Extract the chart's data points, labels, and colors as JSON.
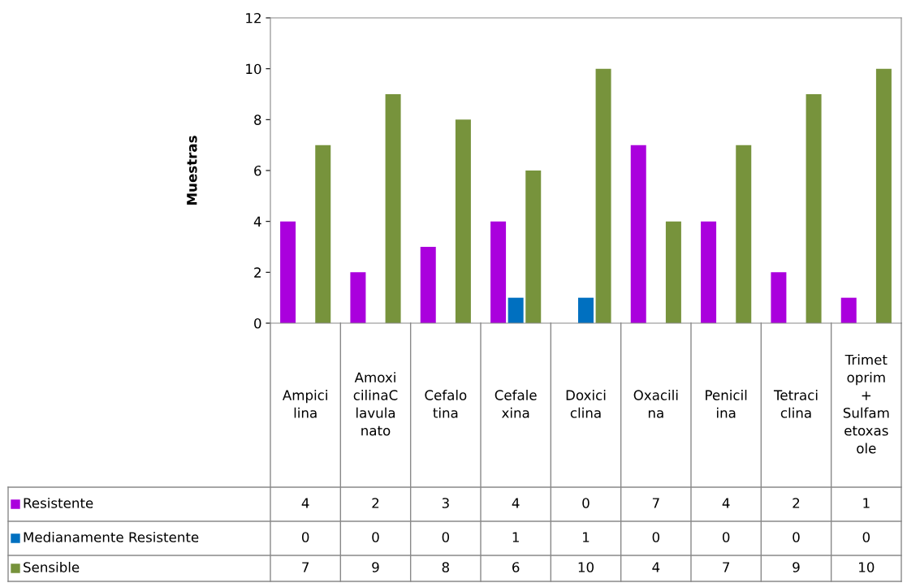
{
  "chart_data": {
    "type": "bar",
    "ylabel": "Muestras",
    "categories": [
      "Ampici\nlina",
      "Amoxi\ncilinaC\nlavula\nnato",
      "Cefalo\ntina",
      "Cefale\nxina",
      "Doxici\nclina",
      "Oxacili\nna",
      "Penicil\nina",
      "Tetraci\nclina",
      "Trimet\noprim\n+\nSulfam\netoxas\nole"
    ],
    "series": [
      {
        "name": "Resistente",
        "color": "#aa00dd",
        "values": [
          4,
          2,
          3,
          4,
          0,
          7,
          4,
          2,
          1
        ]
      },
      {
        "name": "Medianamente Resistente",
        "color": "#0070c0",
        "values": [
          0,
          0,
          0,
          1,
          1,
          0,
          0,
          0,
          0
        ]
      },
      {
        "name": "Sensible",
        "color": "#77933c",
        "values": [
          7,
          9,
          8,
          6,
          10,
          4,
          7,
          9,
          10
        ]
      }
    ],
    "ylim": [
      0,
      12
    ],
    "yticks": [
      0,
      2,
      4,
      6,
      8,
      10,
      12
    ],
    "grid": false,
    "data_labels": true,
    "legend": "bottom left"
  }
}
